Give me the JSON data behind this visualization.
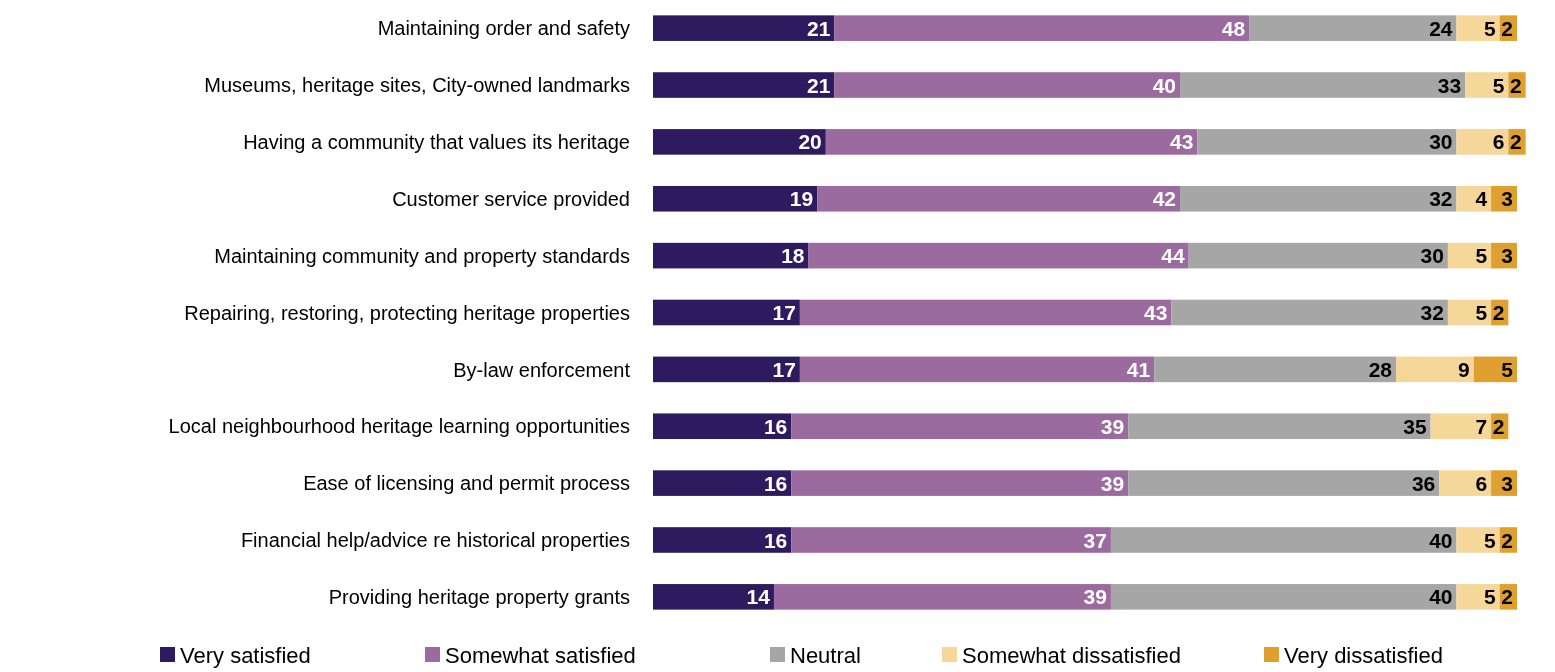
{
  "chart_data": {
    "type": "bar",
    "orientation": "horizontal",
    "stacked": true,
    "data_labels": true,
    "legend": "bottom",
    "tick_labels": "y",
    "xlim": [
      0,
      101
    ],
    "categories": [
      "Maintaining order and safety",
      "Museums, heritage sites, City-owned landmarks",
      "Having a community that values its heritage",
      "Customer service provided",
      "Maintaining community and property standards",
      "Repairing, restoring, protecting heritage properties",
      "By-law enforcement",
      "Local neighbourhood heritage learning opportunities",
      "Ease of licensing and permit process",
      "Financial help/advice re historical properties",
      "Providing heritage property grants"
    ],
    "series": [
      {
        "name": "Very satisfied",
        "color": "#2e1a5e",
        "values": [
          21,
          21,
          20,
          19,
          18,
          17,
          17,
          16,
          16,
          16,
          14
        ]
      },
      {
        "name": "Somewhat satisfied",
        "color": "#9b6a9e",
        "values": [
          48,
          40,
          43,
          42,
          44,
          43,
          41,
          39,
          39,
          37,
          39
        ]
      },
      {
        "name": "Neutral",
        "color": "#a6a6a6",
        "values": [
          24,
          33,
          30,
          32,
          30,
          32,
          28,
          35,
          36,
          40,
          40
        ]
      },
      {
        "name": "Somewhat dissatisfied",
        "color": "#f5d79a",
        "values": [
          5,
          5,
          6,
          4,
          5,
          5,
          9,
          7,
          6,
          5,
          5
        ]
      },
      {
        "name": "Very dissatisfied",
        "color": "#e0a030",
        "values": [
          2,
          2,
          2,
          3,
          3,
          2,
          5,
          2,
          3,
          2,
          2
        ]
      }
    ]
  }
}
